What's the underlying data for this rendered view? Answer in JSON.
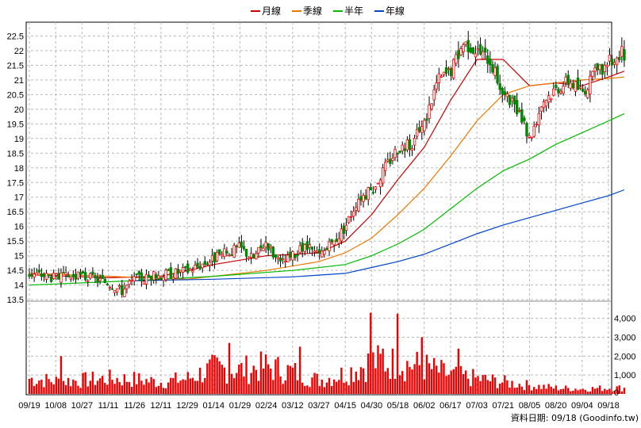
{
  "chart_data": {
    "type": "candlestick",
    "legend": [
      {
        "name": "月線",
        "color": "#cc0000"
      },
      {
        "name": "季線",
        "color": "#ee7700"
      },
      {
        "name": "半年",
        "color": "#00bb00"
      },
      {
        "name": "年線",
        "color": "#0044cc"
      }
    ],
    "price_axis": {
      "range": [
        13.5,
        22.7
      ],
      "ticks": [
        "22.5",
        "22",
        "21.5",
        "21",
        "20.5",
        "20",
        "19.5",
        "19",
        "18.5",
        "18",
        "17.5",
        "17",
        "16.5",
        "16",
        "15.5",
        "15",
        "14.5",
        "14",
        "13.5"
      ]
    },
    "volume_axis": {
      "range": [
        0,
        4700
      ],
      "ticks": [
        "4,000",
        "3,000",
        "2,000",
        "1,000",
        "0"
      ]
    },
    "x_labels": [
      "09/19",
      "10/08",
      "10/27",
      "11/11",
      "11/26",
      "12/11",
      "12/29",
      "01/14",
      "01/29",
      "02/24",
      "03/12",
      "03/27",
      "04/15",
      "04/30",
      "05/18",
      "06/02",
      "06/17",
      "07/03",
      "07/21",
      "08/05",
      "08/20",
      "09/04",
      "09/18"
    ],
    "close_profile": [
      {
        "x": 0,
        "y": 14.4
      },
      {
        "x": 0.5,
        "y": 14.35
      },
      {
        "x": 1,
        "y": 14.25
      },
      {
        "x": 2,
        "y": 14.3
      },
      {
        "x": 3,
        "y": 14.1
      },
      {
        "x": 3.5,
        "y": 13.8
      },
      {
        "x": 4,
        "y": 14.2
      },
      {
        "x": 5,
        "y": 14.35
      },
      {
        "x": 6,
        "y": 14.5
      },
      {
        "x": 7,
        "y": 14.9
      },
      {
        "x": 8,
        "y": 15.3
      },
      {
        "x": 8.5,
        "y": 14.9
      },
      {
        "x": 9,
        "y": 15.5
      },
      {
        "x": 9.5,
        "y": 14.7
      },
      {
        "x": 10,
        "y": 15.0
      },
      {
        "x": 10.5,
        "y": 15.3
      },
      {
        "x": 11,
        "y": 15.0
      },
      {
        "x": 11.5,
        "y": 15.4
      },
      {
        "x": 12,
        "y": 16.0
      },
      {
        "x": 12.5,
        "y": 17.0
      },
      {
        "x": 13,
        "y": 17.2
      },
      {
        "x": 13.5,
        "y": 18.0
      },
      {
        "x": 14,
        "y": 18.7
      },
      {
        "x": 14.5,
        "y": 18.8
      },
      {
        "x": 15,
        "y": 19.5
      },
      {
        "x": 15.5,
        "y": 21.0
      },
      {
        "x": 16,
        "y": 21.3
      },
      {
        "x": 16.5,
        "y": 22.3
      },
      {
        "x": 17,
        "y": 22.0
      },
      {
        "x": 17.5,
        "y": 21.7
      },
      {
        "x": 18,
        "y": 20.5
      },
      {
        "x": 18.5,
        "y": 20.0
      },
      {
        "x": 19,
        "y": 19.0
      },
      {
        "x": 19.5,
        "y": 20.3
      },
      {
        "x": 20,
        "y": 20.7
      },
      {
        "x": 20.5,
        "y": 21.0
      },
      {
        "x": 21,
        "y": 20.6
      },
      {
        "x": 21.5,
        "y": 21.2
      },
      {
        "x": 22,
        "y": 21.6
      },
      {
        "x": 22.5,
        "y": 21.9
      }
    ],
    "volume_profile": [
      {
        "x": 0,
        "v": 900
      },
      {
        "x": 1,
        "v": 750
      },
      {
        "x": 2,
        "v": 800
      },
      {
        "x": 3,
        "v": 900
      },
      {
        "x": 4,
        "v": 850
      },
      {
        "x": 5,
        "v": 700
      },
      {
        "x": 6,
        "v": 900
      },
      {
        "x": 7,
        "v": 1500
      },
      {
        "x": 8,
        "v": 1400
      },
      {
        "x": 9,
        "v": 1600
      },
      {
        "x": 10,
        "v": 1300
      },
      {
        "x": 11,
        "v": 800
      },
      {
        "x": 12,
        "v": 1200
      },
      {
        "x": 13,
        "v": 1900
      },
      {
        "x": 14,
        "v": 1800
      },
      {
        "x": 15,
        "v": 1600
      },
      {
        "x": 16,
        "v": 1100
      },
      {
        "x": 17,
        "v": 900
      },
      {
        "x": 18,
        "v": 700
      },
      {
        "x": 19,
        "v": 500
      },
      {
        "x": 20,
        "v": 350
      },
      {
        "x": 21,
        "v": 300
      },
      {
        "x": 22,
        "v": 350
      }
    ],
    "volume_spikes": [
      {
        "x": 13.0,
        "v": 4300
      },
      {
        "x": 14.0,
        "v": 4250
      },
      {
        "x": 1.2,
        "v": 2000
      },
      {
        "x": 7.6,
        "v": 2700
      },
      {
        "x": 10.3,
        "v": 2500
      },
      {
        "x": 14.9,
        "v": 3000
      },
      {
        "x": 16.3,
        "v": 2400
      },
      {
        "x": 13.4,
        "v": 2400
      }
    ],
    "moving_averages": {
      "月線": [
        {
          "x": 0,
          "y": 14.35
        },
        {
          "x": 3,
          "y": 14.25
        },
        {
          "x": 5,
          "y": 14.3
        },
        {
          "x": 7,
          "y": 14.7
        },
        {
          "x": 9,
          "y": 15.0
        },
        {
          "x": 11,
          "y": 15.1
        },
        {
          "x": 12,
          "y": 15.5
        },
        {
          "x": 13,
          "y": 16.4
        },
        {
          "x": 14,
          "y": 17.6
        },
        {
          "x": 15,
          "y": 18.7
        },
        {
          "x": 16,
          "y": 20.3
        },
        {
          "x": 17,
          "y": 21.7
        },
        {
          "x": 18,
          "y": 21.7
        },
        {
          "x": 19,
          "y": 20.8
        },
        {
          "x": 20,
          "y": 20.9
        },
        {
          "x": 21,
          "y": 20.8
        },
        {
          "x": 22,
          "y": 21.1
        },
        {
          "x": 22.6,
          "y": 21.3
        }
      ],
      "季線": [
        {
          "x": 0,
          "y": 14.4
        },
        {
          "x": 6,
          "y": 14.2
        },
        {
          "x": 9,
          "y": 14.5
        },
        {
          "x": 11,
          "y": 14.8
        },
        {
          "x": 12,
          "y": 15.1
        },
        {
          "x": 13,
          "y": 15.6
        },
        {
          "x": 14,
          "y": 16.4
        },
        {
          "x": 15,
          "y": 17.3
        },
        {
          "x": 16,
          "y": 18.4
        },
        {
          "x": 17,
          "y": 19.6
        },
        {
          "x": 18,
          "y": 20.5
        },
        {
          "x": 19,
          "y": 20.8
        },
        {
          "x": 20,
          "y": 20.9
        },
        {
          "x": 21,
          "y": 21.0
        },
        {
          "x": 22,
          "y": 21.05
        },
        {
          "x": 22.6,
          "y": 21.1
        }
      ],
      "半年": [
        {
          "x": 0,
          "y": 14.0
        },
        {
          "x": 4,
          "y": 14.15
        },
        {
          "x": 7,
          "y": 14.3
        },
        {
          "x": 10,
          "y": 14.5
        },
        {
          "x": 12,
          "y": 14.7
        },
        {
          "x": 13,
          "y": 15.0
        },
        {
          "x": 14,
          "y": 15.4
        },
        {
          "x": 15,
          "y": 15.9
        },
        {
          "x": 16,
          "y": 16.6
        },
        {
          "x": 17,
          "y": 17.3
        },
        {
          "x": 18,
          "y": 17.9
        },
        {
          "x": 19,
          "y": 18.3
        },
        {
          "x": 20,
          "y": 18.8
        },
        {
          "x": 21,
          "y": 19.2
        },
        {
          "x": 22,
          "y": 19.6
        },
        {
          "x": 22.6,
          "y": 19.85
        }
      ],
      "年線": [
        {
          "x": 4,
          "y": 14.15
        },
        {
          "x": 7,
          "y": 14.2
        },
        {
          "x": 10,
          "y": 14.28
        },
        {
          "x": 12,
          "y": 14.4
        },
        {
          "x": 13,
          "y": 14.6
        },
        {
          "x": 14,
          "y": 14.8
        },
        {
          "x": 15,
          "y": 15.05
        },
        {
          "x": 16,
          "y": 15.4
        },
        {
          "x": 17,
          "y": 15.75
        },
        {
          "x": 18,
          "y": 16.05
        },
        {
          "x": 19,
          "y": 16.3
        },
        {
          "x": 20,
          "y": 16.55
        },
        {
          "x": 21,
          "y": 16.8
        },
        {
          "x": 22,
          "y": 17.05
        },
        {
          "x": 22.6,
          "y": 17.25
        }
      ]
    },
    "footer": "資料日期: 09/18 (Goodinfo.tw)"
  }
}
